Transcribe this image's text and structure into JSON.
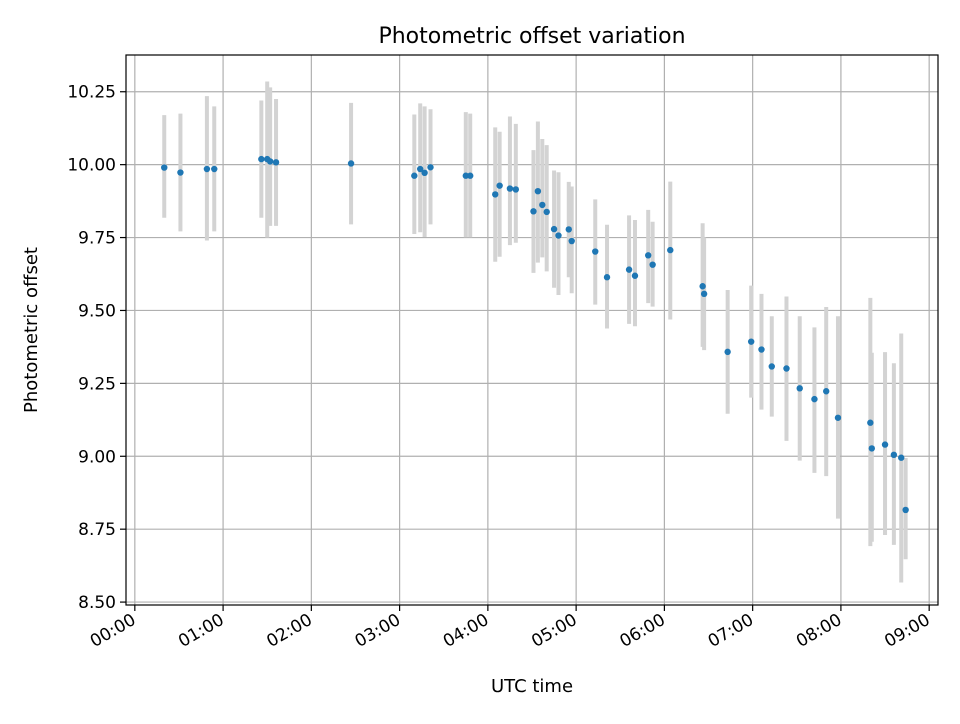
{
  "chart_data": {
    "type": "scatter",
    "title": "Photometric offset variation",
    "xlabel": "UTC time",
    "ylabel": "Photometric offset",
    "x_unit": "hours",
    "xlim": [
      "-0.1",
      "9.1"
    ],
    "ylim": [
      8.49,
      10.376
    ],
    "x_ticks": [
      "00:00",
      "01:00",
      "02:00",
      "03:00",
      "04:00",
      "05:00",
      "06:00",
      "07:00",
      "08:00",
      "09:00"
    ],
    "y_ticks": [
      "8.50",
      "8.75",
      "9.00",
      "9.25",
      "9.50",
      "9.75",
      "10.00",
      "10.25"
    ],
    "grid": true,
    "colors": {
      "points": "#1f77b4",
      "error_bars": "#d3d3d3",
      "grid": "#b0b0b0"
    },
    "series": [
      {
        "x": [
          "00:20",
          "00:31",
          "00:49",
          "00:54",
          "01:26",
          "01:30",
          "01:32",
          "01:36",
          "02:27",
          "03:10",
          "03:14",
          "03:17",
          "03:21",
          "03:45",
          "03:48",
          "04:05",
          "04:08",
          "04:15",
          "04:19",
          "04:31",
          "04:34",
          "04:37",
          "04:40",
          "04:45",
          "04:48",
          "04:55",
          "04:57",
          "05:13",
          "05:21",
          "05:36",
          "05:40",
          "05:49",
          "05:52",
          "06:04",
          "06:26",
          "06:27",
          "06:43",
          "06:59",
          "07:06",
          "07:13",
          "07:23",
          "07:32",
          "07:42",
          "07:50",
          "07:58",
          "08:20",
          "08:21",
          "08:30",
          "08:36",
          "08:41",
          "08:44"
        ],
        "y": [
          9.99,
          9.973,
          9.985,
          9.985,
          10.019,
          10.019,
          10.011,
          10.008,
          10.004,
          9.962,
          9.985,
          9.972,
          9.991,
          9.962,
          9.962,
          9.898,
          9.928,
          9.918,
          9.915,
          9.84,
          9.909,
          9.862,
          9.838,
          9.779,
          9.757,
          9.778,
          9.738,
          9.702,
          9.614,
          9.64,
          9.619,
          9.689,
          9.657,
          9.707,
          9.583,
          9.557,
          9.358,
          9.393,
          9.366,
          9.308,
          9.301,
          9.233,
          9.196,
          9.223,
          9.132,
          9.115,
          9.027,
          9.04,
          9.005,
          8.995,
          8.816
        ],
        "y_low": [
          9.818,
          9.771,
          9.74,
          9.771,
          9.818,
          9.75,
          9.79,
          9.79,
          9.795,
          9.762,
          9.768,
          9.752,
          9.795,
          9.751,
          9.751,
          9.667,
          9.684,
          9.724,
          9.732,
          9.629,
          9.664,
          9.682,
          9.634,
          9.578,
          9.553,
          9.614,
          9.559,
          9.52,
          9.438,
          9.454,
          9.446,
          9.525,
          9.513,
          9.469,
          9.375,
          9.364,
          9.146,
          9.201,
          9.16,
          9.136,
          9.053,
          8.985,
          8.943,
          8.932,
          8.786,
          8.692,
          8.707,
          8.73,
          8.696,
          8.567,
          8.647
        ],
        "y_high": [
          10.17,
          10.175,
          10.235,
          10.2,
          10.22,
          10.285,
          10.265,
          10.225,
          10.212,
          10.172,
          10.21,
          10.2,
          10.19,
          10.18,
          10.175,
          10.128,
          10.113,
          10.165,
          10.14,
          10.05,
          10.148,
          10.088,
          10.067,
          9.98,
          9.974,
          9.941,
          9.925,
          9.881,
          9.794,
          9.826,
          9.81,
          9.845,
          9.804,
          9.942,
          9.799,
          9.75,
          9.57,
          9.585,
          9.557,
          9.48,
          9.548,
          9.48,
          9.442,
          9.512,
          9.48,
          9.543,
          9.355,
          9.357,
          9.319,
          9.421,
          8.994
        ]
      }
    ]
  }
}
